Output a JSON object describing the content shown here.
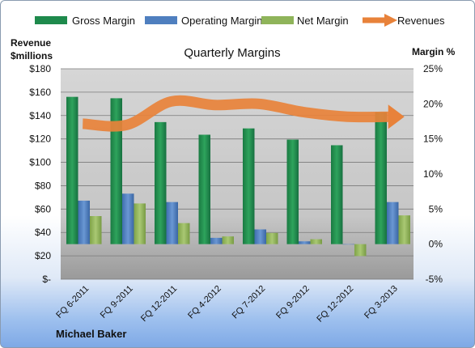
{
  "chart_data": {
    "type": "bar",
    "title": "Quarterly Margins",
    "left_axis_label_line1": "Revenue",
    "left_axis_label_line2": "$millions",
    "right_axis_label": "Margin %",
    "categories": [
      "FQ 6-2011",
      "FQ 9-2011",
      "FQ 12-2011",
      "FQ 4-2012",
      "FQ 7-2012",
      "FQ 9-2012",
      "FQ 12-2012",
      "FQ 3-2013"
    ],
    "left_ylim": [
      0,
      180
    ],
    "left_ticks": [
      0,
      20,
      40,
      60,
      80,
      100,
      120,
      140,
      160,
      180
    ],
    "left_tick_labels": [
      "$-",
      "$20",
      "$40",
      "$60",
      "$80",
      "$100",
      "$120",
      "$140",
      "$160",
      "$180"
    ],
    "right_ylim": [
      -5,
      25
    ],
    "right_ticks": [
      -5,
      0,
      5,
      10,
      15,
      20,
      25
    ],
    "right_tick_labels": [
      "-5%",
      "0%",
      "5%",
      "10%",
      "15%",
      "20%",
      "25%"
    ],
    "series": [
      {
        "name": "Gross Margin",
        "axis": "right",
        "kind": "bar",
        "color": "#1e8a4c",
        "values": [
          21.0,
          20.8,
          17.4,
          15.6,
          16.5,
          14.9,
          14.1,
          18.8
        ]
      },
      {
        "name": "Operating Margin",
        "axis": "right",
        "kind": "bar",
        "color": "#4f7fbf",
        "values": [
          6.2,
          7.2,
          6.0,
          0.9,
          2.1,
          0.4,
          0.0,
          6.0
        ]
      },
      {
        "name": "Net Margin",
        "axis": "right",
        "kind": "bar",
        "color": "#8fb45a",
        "values": [
          4.0,
          5.8,
          3.0,
          1.1,
          1.6,
          0.7,
          -1.7,
          4.1
        ]
      },
      {
        "name": "Revenues",
        "axis": "left",
        "kind": "line",
        "color": "#e8823a",
        "values": [
          133,
          132,
          152,
          149,
          150,
          143,
          139,
          139
        ]
      }
    ],
    "grid": true,
    "legend_position": "top"
  },
  "footer": {
    "author": "Michael Baker"
  }
}
